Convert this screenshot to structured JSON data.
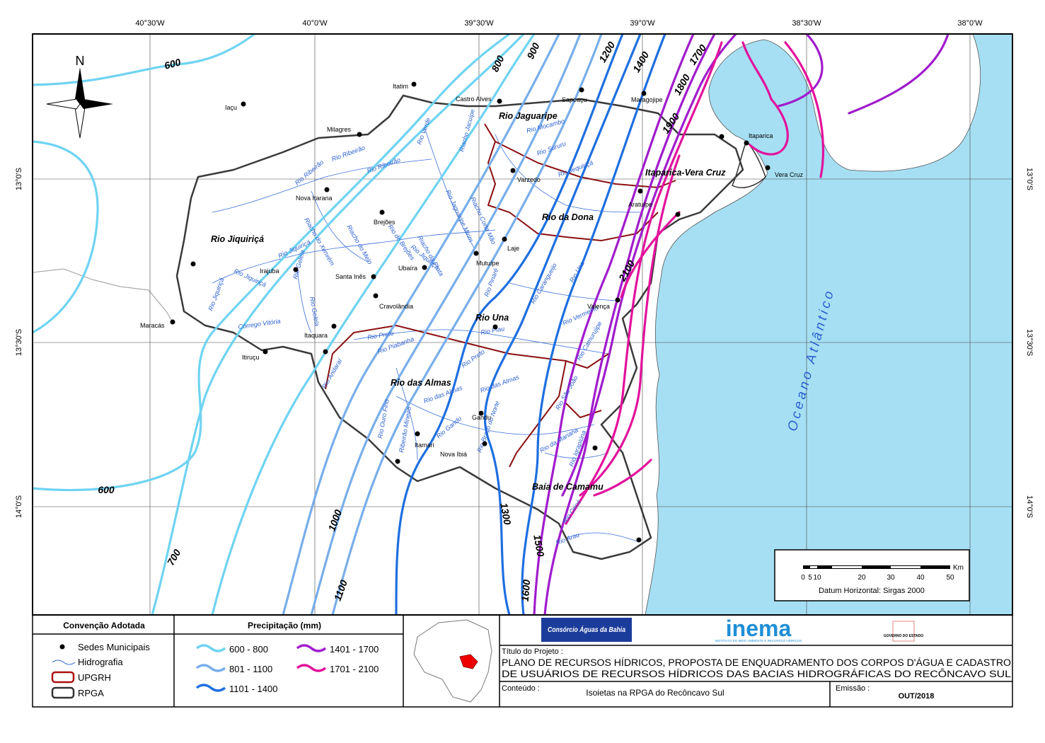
{
  "graticule": {
    "top": [
      "40°30'W",
      "40°0'W",
      "39°30'W",
      "39°0'W",
      "38°30'W",
      "38°0'W"
    ],
    "left": [
      "13°0'S",
      "13°30'S",
      "14°0'S"
    ],
    "right": [
      "13°0'S",
      "13°30'S",
      "14°0'S"
    ]
  },
  "north": "N",
  "ocean": "Oceano Atlântico",
  "regions": [
    "Rio Jiquiriçá",
    "Rio Jaguaripe",
    "Itaparica-Vera Cruz",
    "Rio da Dona",
    "Rio Una",
    "Rio das Almas",
    "Baía de Camamu"
  ],
  "towns": [
    "Itatim",
    "Castro Alves",
    "Iaçu",
    "Milagres",
    "Sapeaçu",
    "Maragojipe",
    "Itaparica",
    "Vera Cruz",
    "Varzedo",
    "Nova Itarana",
    "Brejões",
    "Aratuípe",
    "Laje",
    "Mutuípe",
    "Ubaíra",
    "Irajuba",
    "Santa Inês",
    "Cravolândia",
    "Valença",
    "Maracás",
    "Itaquara",
    "Itiruçu",
    "Gandu",
    "Itamari",
    "Nova Ibiá"
  ],
  "rivers": [
    "Rio Ribeirão",
    "Rio Ribeirão",
    "Rio Ribeirão",
    "Rio Verde",
    "Riacho Jacuípe",
    "Rio Jaguaripe Mirim",
    "Riacho Corta Mão",
    "Rio de Brejões",
    "Riacho do Xenxém",
    "Riacho do Melo",
    "Rio Jiquiriçá",
    "Rio Jiquiriçá",
    "Rio Jiquiriçá",
    "Rio Gelela",
    "Rio Gelela",
    "Rio Jiquiriçá",
    "Córrego Vitória",
    "Rio Mocambo",
    "Rio Sururu",
    "Rio Jequiriçá",
    "Riacho da Prata",
    "Rio Preto",
    "Rio Piabanha",
    "Rio Preto",
    "Rio Piau",
    "Rio Una",
    "Rio Vermelho",
    "Rio Camurujipe",
    "Rio São João",
    "Rio das Almas",
    "Rio das Almas",
    "Rio Gandu",
    "Rio Braço do Norte",
    "Ribeirão Mineiro",
    "Rio Ouro Fino",
    "Rio da Mariana",
    "Rio Igrapiúna",
    "Rio Oricó",
    "Rio Arau",
    "Rio Pinaré",
    "Rio Carangueijo",
    "Rio Andaraí"
  ],
  "isolines": [
    "600",
    "600",
    "700",
    "800",
    "900",
    "1000",
    "1100",
    "1200",
    "1300",
    "1400",
    "1500",
    "1600",
    "1700",
    "1800",
    "1900",
    "2100"
  ],
  "scale": {
    "unit": "Km",
    "ticks": [
      "0",
      "5",
      "10",
      "20",
      "30",
      "40",
      "50"
    ],
    "datum": "Datum Horizontal: Sirgas 2000"
  },
  "legend": {
    "convention": {
      "title": "Convenção Adotada",
      "items": [
        "Sedes Municipais",
        "Hidrografia",
        "UPGRH",
        "RPGA"
      ]
    },
    "precipitation": {
      "title": "Precipitação (mm)",
      "classes": [
        {
          "label": "600 - 800",
          "color": "#6fd3f2"
        },
        {
          "label": "801 - 1100",
          "color": "#78aeea"
        },
        {
          "label": "1101 - 1400",
          "color": "#1e6fe0"
        },
        {
          "label": "1401 - 1700",
          "color": "#a01ccc"
        },
        {
          "label": "1701 - 2100",
          "color": "#e2129c"
        }
      ]
    }
  },
  "title_block": {
    "logo1": "Consórcio Águas da Bahia",
    "logo2": "inema",
    "logo2_sub": "INSTITUTO DO MEIO AMBIENTE E RECURSOS HÍDRICOS",
    "logo3": "GOVERNO DO ESTADO",
    "project_label": "Título do Projeto :",
    "project_lines": [
      "PLANO DE RECURSOS HÍDRICOS, PROPOSTA DE ENQUADRAMENTO DOS CORPOS D'ÁGUA E CADASTRO",
      "DE USUÁRIOS DE RECURSOS HÍDRICOS DAS BACIAS HIDROGRÁFICAS DO RECÔNCAVO SUL"
    ],
    "content_label": "Conteúdo :",
    "content": "Isoietas na RPGA do Recôncavo Sul",
    "issue_label": "Emissão :",
    "issue": "OUT/2018"
  }
}
